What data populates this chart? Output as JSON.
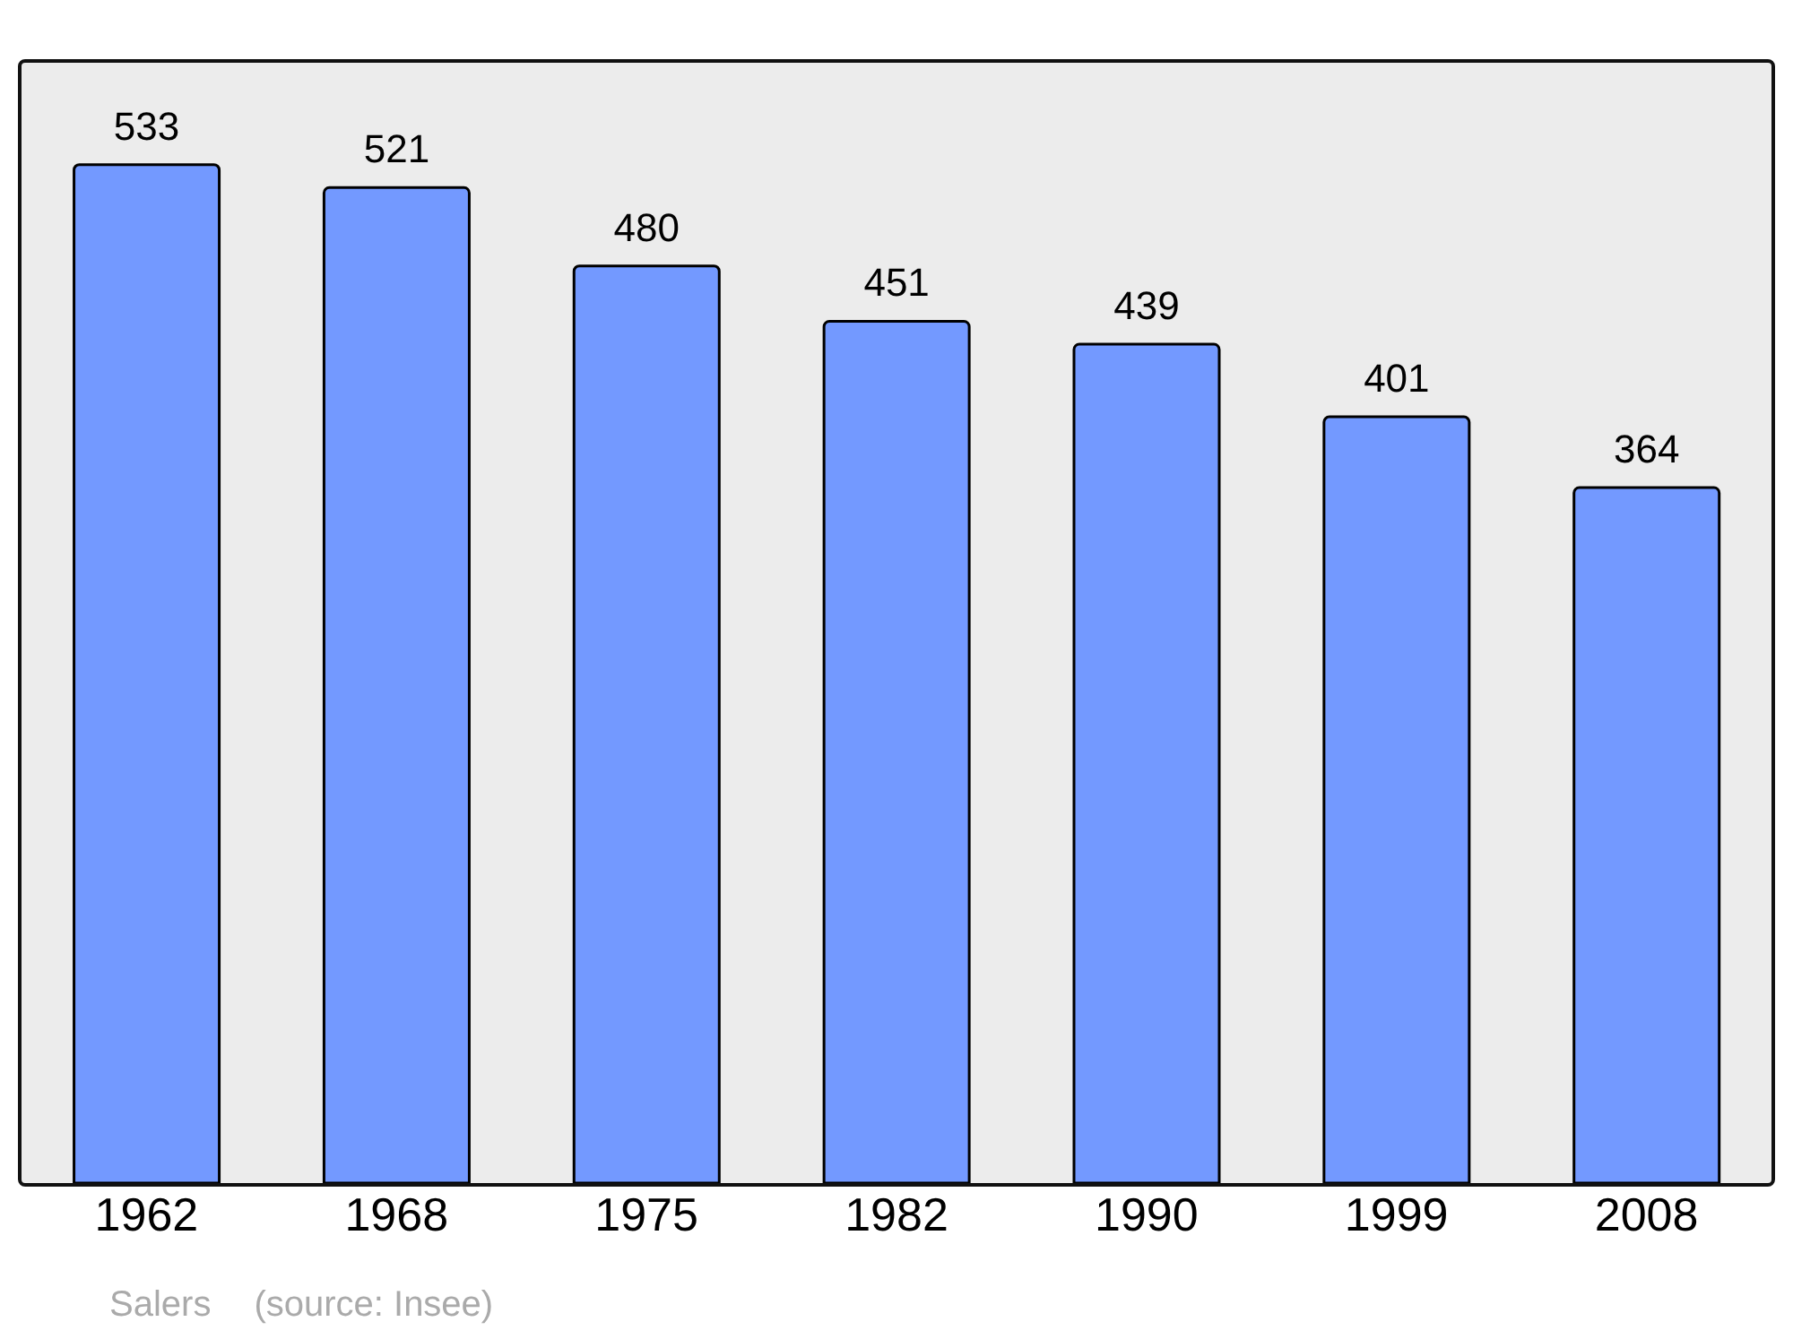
{
  "chart_data": {
    "type": "bar",
    "categories": [
      "1962",
      "1968",
      "1975",
      "1982",
      "1990",
      "1999",
      "2008"
    ],
    "values": [
      533,
      521,
      480,
      451,
      439,
      401,
      364
    ],
    "color": "#7399ff",
    "data_labels": true,
    "annotations": [
      "Salers",
      "(source: Insee)"
    ]
  }
}
